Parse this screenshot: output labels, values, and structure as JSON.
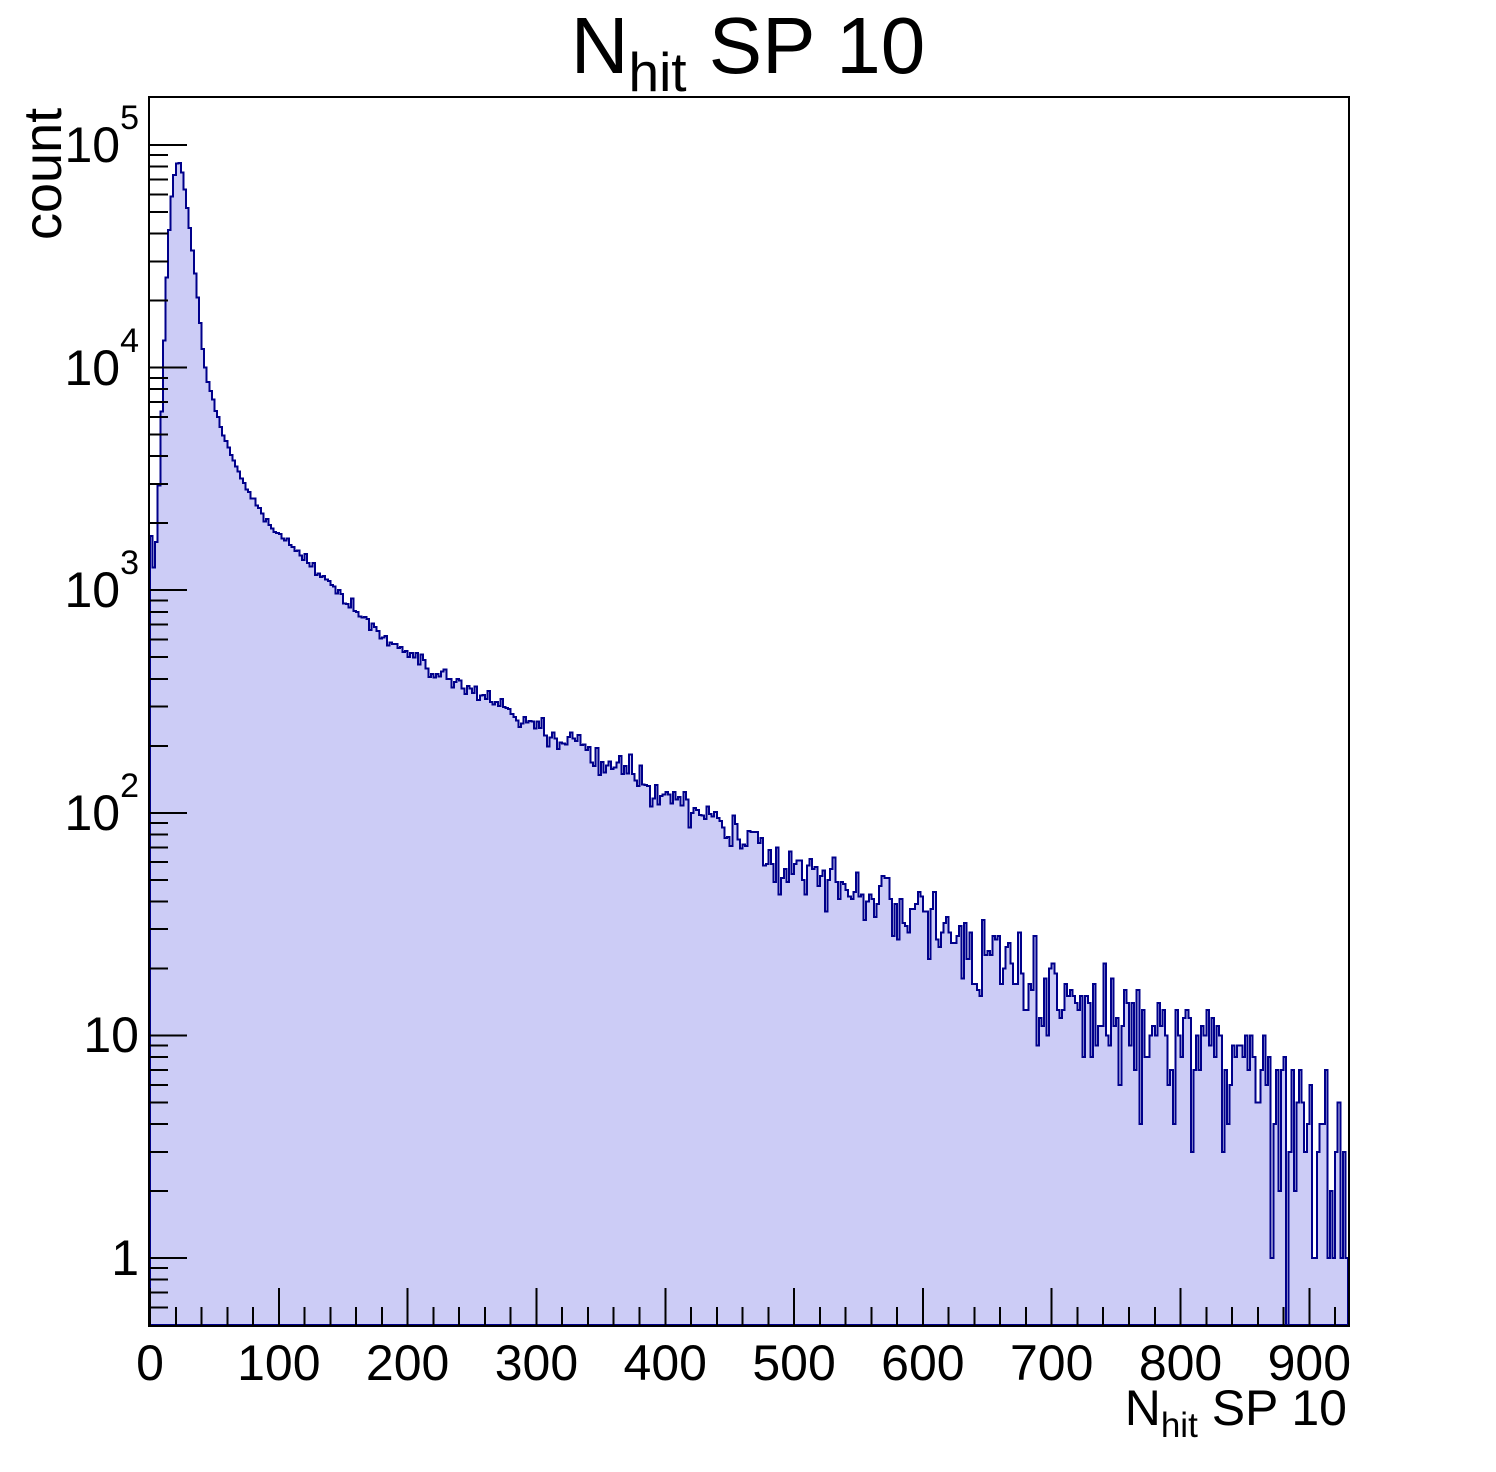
{
  "chart_data": {
    "type": "bar",
    "subtype": "step-histogram-log-y",
    "title": "N_hit SP 10",
    "title_parts": {
      "main": "N",
      "sub": "hit",
      "rest": " SP 10"
    },
    "xlabel": "N_hit SP 10",
    "xlabel_parts": {
      "main": "N",
      "sub": "hit",
      "rest": " SP 10"
    },
    "ylabel": "count",
    "y_scale": "log",
    "x_range": [
      0,
      930
    ],
    "y_range": [
      0.5,
      164000
    ],
    "bin_width": 2,
    "grid": "off",
    "legend": "none",
    "x_ticks": [
      0,
      100,
      200,
      300,
      400,
      500,
      600,
      700,
      800,
      900
    ],
    "x_minor_step": 20,
    "y_ticks": [
      {
        "text": "1",
        "exp": ""
      },
      {
        "text": "10",
        "exp": ""
      },
      {
        "text": "10",
        "exp": "2"
      },
      {
        "text": "10",
        "exp": "3"
      },
      {
        "text": "10",
        "exp": "4"
      },
      {
        "text": "10",
        "exp": "5"
      }
    ],
    "peak": {
      "x": 22,
      "count": 86000
    },
    "anchors": [
      [
        0,
        2500
      ],
      [
        2,
        1250
      ],
      [
        4,
        1300
      ],
      [
        6,
        2100
      ],
      [
        8,
        4200
      ],
      [
        10,
        9500
      ],
      [
        12,
        19000
      ],
      [
        14,
        34000
      ],
      [
        16,
        51000
      ],
      [
        18,
        68000
      ],
      [
        20,
        80000
      ],
      [
        22,
        86000
      ],
      [
        24,
        80500
      ],
      [
        26,
        70000
      ],
      [
        28,
        58000
      ],
      [
        30,
        47500
      ],
      [
        32,
        38000
      ],
      [
        34,
        30000
      ],
      [
        36,
        23500
      ],
      [
        38,
        18000
      ],
      [
        40,
        13800
      ],
      [
        42,
        10500
      ],
      [
        46,
        8200
      ],
      [
        50,
        6800
      ],
      [
        55,
        5450
      ],
      [
        60,
        4500
      ],
      [
        65,
        3800
      ],
      [
        70,
        3300
      ],
      [
        75,
        2900
      ],
      [
        80,
        2570
      ],
      [
        85,
        2300
      ],
      [
        90,
        2080
      ],
      [
        100,
        1780
      ],
      [
        110,
        1560
      ],
      [
        120,
        1380
      ],
      [
        130,
        1230
      ],
      [
        145,
        1000
      ],
      [
        155,
        870
      ],
      [
        165,
        768
      ],
      [
        175,
        676
      ],
      [
        188,
        582
      ],
      [
        200,
        513
      ],
      [
        215,
        455
      ],
      [
        230,
        407
      ],
      [
        250,
        355
      ],
      [
        270,
        306
      ],
      [
        290,
        266
      ],
      [
        310,
        229
      ],
      [
        330,
        200
      ],
      [
        350,
        172
      ],
      [
        370,
        150
      ],
      [
        400,
        120
      ],
      [
        426,
        100
      ],
      [
        450,
        85
      ],
      [
        480,
        69
      ],
      [
        500,
        60
      ],
      [
        550,
        45
      ],
      [
        600,
        33
      ],
      [
        650,
        24.5
      ],
      [
        700,
        18
      ],
      [
        750,
        13.5
      ],
      [
        795,
        10
      ],
      [
        840,
        7.6
      ],
      [
        880,
        6
      ],
      [
        900,
        5
      ],
      [
        915,
        3.5
      ],
      [
        925,
        2.2
      ],
      [
        930,
        1.4
      ]
    ],
    "noise_seed": 1337,
    "colors": {
      "fill": "#ccccf6",
      "line": "#00008b",
      "frame": "#000000",
      "text": "#000000"
    }
  }
}
